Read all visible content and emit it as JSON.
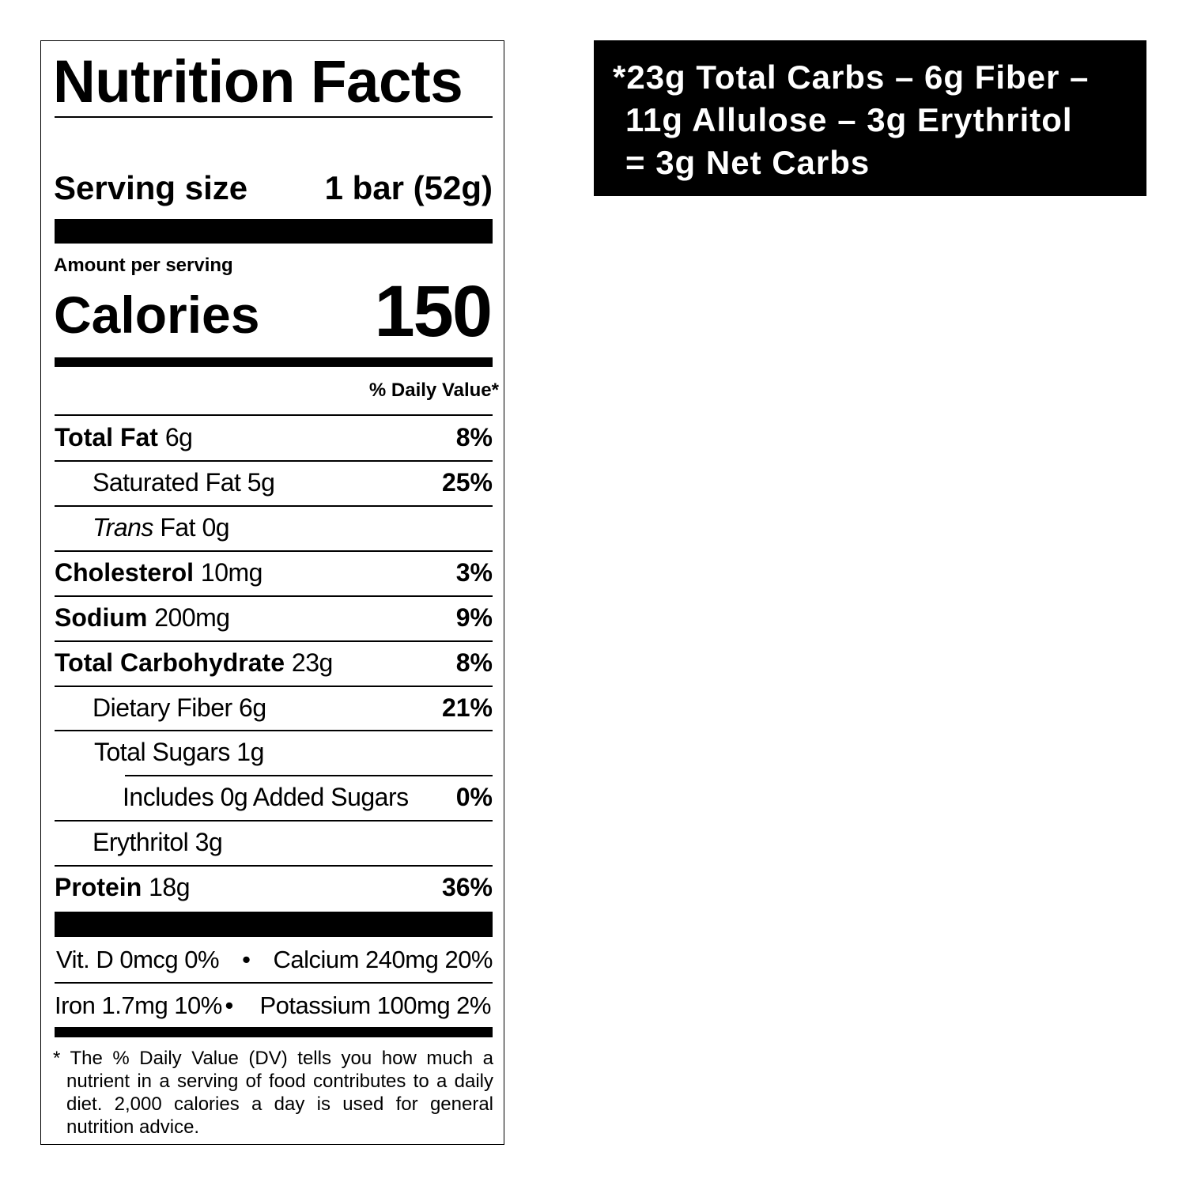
{
  "label": {
    "title": "Nutrition Facts",
    "serving_size_label": "Serving size",
    "serving_size_value": "1 bar (52g)",
    "amount_per_serving": "Amount per serving",
    "calories_label": "Calories",
    "calories_value": "150",
    "daily_value_header": "% Daily Value*",
    "nutrients": [
      {
        "name": "Total Fat",
        "amount": "6g",
        "dv": "8%"
      },
      {
        "name": "Saturated Fat",
        "amount": "5g",
        "dv": "25%"
      },
      {
        "name": "Trans",
        "name_suffix": "Fat",
        "amount": "0g",
        "dv": ""
      },
      {
        "name": "Cholesterol",
        "amount": "10mg",
        "dv": "3%"
      },
      {
        "name": "Sodium",
        "amount": "200mg",
        "dv": "9%"
      },
      {
        "name": "Total Carbohydrate",
        "amount": "23g",
        "dv": "8%"
      },
      {
        "name": "Dietary Fiber",
        "amount": "6g",
        "dv": "21%"
      },
      {
        "name": "Total Sugars",
        "amount": "1g",
        "dv": ""
      },
      {
        "name": "Includes 0g Added Sugars",
        "amount": "",
        "dv": "0%"
      },
      {
        "name": "Erythritol",
        "amount": "3g",
        "dv": ""
      },
      {
        "name": "Protein",
        "amount": "18g",
        "dv": "36%"
      }
    ],
    "vitamins": [
      {
        "left": "Vit. D 0mcg 0%",
        "sep": "•",
        "right": "Calcium 240mg 20%"
      },
      {
        "left": "Iron 1.7mg 10%",
        "sep": "•",
        "right": "Potassium 100mg 2%"
      }
    ],
    "footnote": "* The % Daily Value (DV) tells you how much a nutrient in a serving of food contributes to a daily diet. 2,000 calories a day is used for general nutrition advice."
  },
  "net_carbs": {
    "line1": "*23g Total Carbs – 6g Fiber –",
    "line2": "11g Allulose – 3g Erythritol",
    "line3": "= 3g Net Carbs"
  }
}
